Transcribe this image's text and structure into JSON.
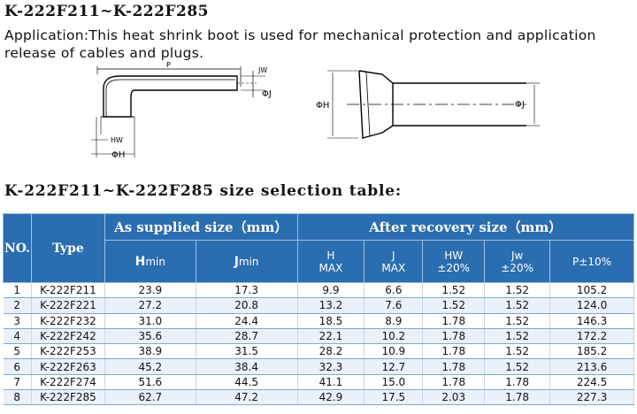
{
  "title": "K-222F211~K-222F285",
  "application": "Application:This heat shrink boot is used for mechanical protection and application release of cables and plugs.",
  "diagram": {
    "left_labels": {
      "p": "P",
      "jw": "JW",
      "phi_j": "ΦJ",
      "hw": "HW",
      "phi_h": "ΦH"
    },
    "right_labels": {
      "phi_h": "ΦH",
      "phi_j": "ΦJ"
    }
  },
  "table_title": "K-222F211~K-222F285  size selection  table:",
  "table": {
    "headers": {
      "no": "NO.",
      "type": "Type",
      "supplied": "As supplied size（mm）",
      "recovery": "After recovery size（mm）",
      "h_min_main": "H",
      "h_min_sub": "min",
      "j_min_main": "J",
      "j_min_sub": "min",
      "h_max": [
        "H",
        "MAX"
      ],
      "j_max": [
        "J",
        "MAX"
      ],
      "hw": [
        "HW",
        "±20%"
      ],
      "jw": [
        "Jw",
        "±20%"
      ],
      "p": "P±10%"
    },
    "rows": [
      [
        "1",
        "K-222F211",
        "23.9",
        "17.3",
        "9.9",
        "6.6",
        "1.52",
        "1.52",
        "105.2"
      ],
      [
        "2",
        "K-222F221",
        "27.2",
        "20.8",
        "13.2",
        "7.6",
        "1.52",
        "1.52",
        "124.0"
      ],
      [
        "3",
        "K-222F232",
        "31.0",
        "24.4",
        "18.5",
        "8.9",
        "1.78",
        "1.52",
        "146.3"
      ],
      [
        "4",
        "K-222F242",
        "35.6",
        "28.7",
        "22.1",
        "10.2",
        "1.78",
        "1.52",
        "172.2"
      ],
      [
        "5",
        "K-222F253",
        "38.9",
        "31.5",
        "28.2",
        "10.9",
        "1.78",
        "1.52",
        "185.2"
      ],
      [
        "6",
        "K-222F263",
        "45.2",
        "38.4",
        "32.3",
        "12.7",
        "1.78",
        "1.52",
        "213.6"
      ],
      [
        "7",
        "K-222F274",
        "51.6",
        "44.5",
        "41.1",
        "15.0",
        "1.78",
        "1.78",
        "224.5"
      ],
      [
        "8",
        "K-222F285",
        "62.7",
        "47.2",
        "42.9",
        "17.5",
        "2.03",
        "1.78",
        "227.3"
      ]
    ]
  },
  "colors": {
    "header_bg": "#2a6db0",
    "row_even": "#eaf1fa",
    "row_odd": "#ffffff"
  }
}
